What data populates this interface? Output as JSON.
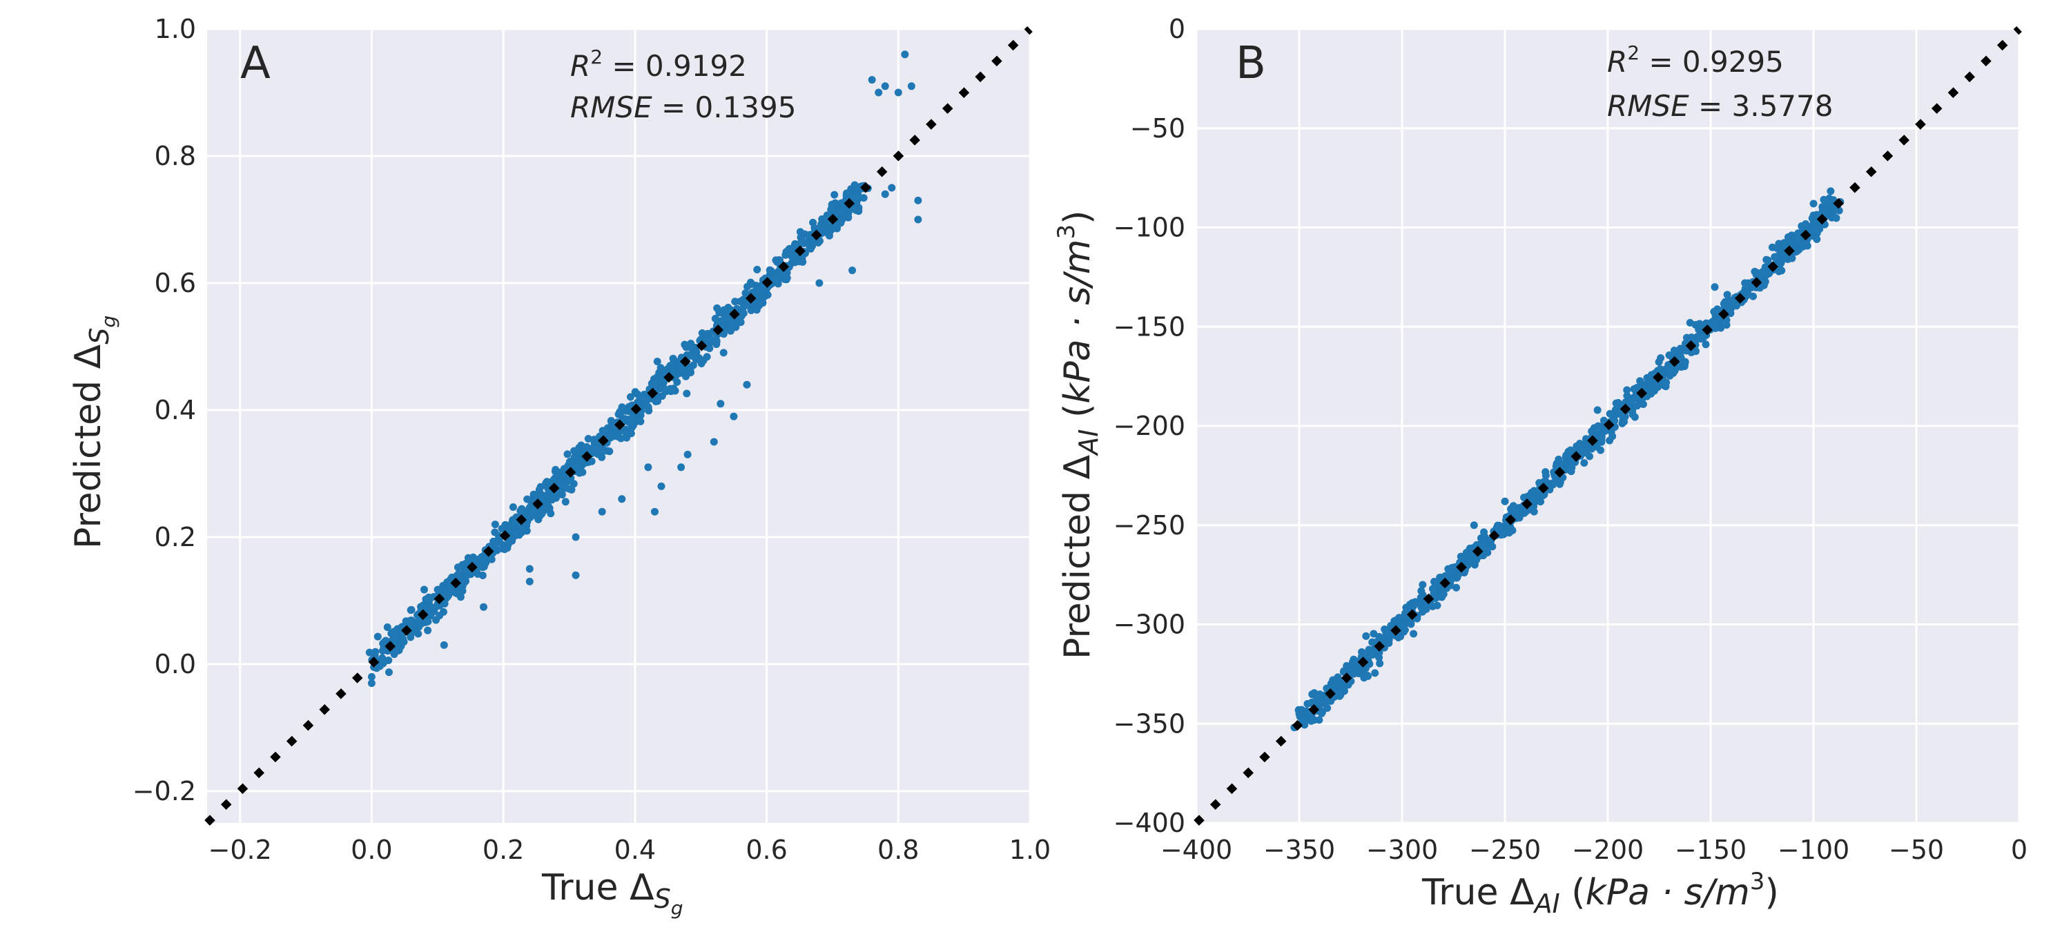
{
  "chart_data": [
    {
      "type": "scatter",
      "panel_label": "A",
      "xlabel": "True Δ",
      "xlabel_sub": "S",
      "xlabel_subsub": "g",
      "ylabel": "Predicted Δ",
      "ylabel_sub": "S",
      "ylabel_subsub": "g",
      "xlim": [
        -0.25,
        1.0
      ],
      "ylim": [
        -0.25,
        1.0
      ],
      "xticks": [
        -0.2,
        0.0,
        0.2,
        0.4,
        0.6,
        0.8,
        1.0
      ],
      "yticks": [
        -0.2,
        0.0,
        0.2,
        0.4,
        0.6,
        0.8,
        1.0
      ],
      "xtick_labels": [
        "−0.2",
        "0.0",
        "0.2",
        "0.4",
        "0.6",
        "0.8",
        "1.0"
      ],
      "ytick_labels": [
        "−0.2",
        "0.0",
        "0.2",
        "0.4",
        "0.6",
        "0.8",
        "1.0"
      ],
      "grid": true,
      "identity_line": true,
      "point_color": "#1f77b4",
      "annotation": {
        "r2_sym": "R",
        "r2_sup": "2",
        "r2_text": " = 0.9192",
        "rmse_sym": "RMSE",
        "rmse_text": " = 0.1395"
      },
      "scatter_trend": {
        "x_start": 0.0,
        "x_end": 0.75,
        "approx": "y ≈ x"
      },
      "outliers": [
        {
          "x": 0.76,
          "y": 0.92
        },
        {
          "x": 0.77,
          "y": 0.9
        },
        {
          "x": 0.78,
          "y": 0.91
        },
        {
          "x": 0.8,
          "y": 0.9
        },
        {
          "x": 0.81,
          "y": 0.96
        },
        {
          "x": 0.82,
          "y": 0.91
        },
        {
          "x": 0.83,
          "y": 0.73
        },
        {
          "x": 0.83,
          "y": 0.7
        },
        {
          "x": 0.79,
          "y": 0.75
        },
        {
          "x": 0.78,
          "y": 0.74
        },
        {
          "x": 0.73,
          "y": 0.62
        },
        {
          "x": 0.68,
          "y": 0.6
        },
        {
          "x": 0.57,
          "y": 0.44
        },
        {
          "x": 0.55,
          "y": 0.39
        },
        {
          "x": 0.53,
          "y": 0.41
        },
        {
          "x": 0.52,
          "y": 0.35
        },
        {
          "x": 0.48,
          "y": 0.33
        },
        {
          "x": 0.47,
          "y": 0.31
        },
        {
          "x": 0.44,
          "y": 0.28
        },
        {
          "x": 0.42,
          "y": 0.31
        },
        {
          "x": 0.43,
          "y": 0.24
        },
        {
          "x": 0.38,
          "y": 0.26
        },
        {
          "x": 0.35,
          "y": 0.24
        },
        {
          "x": 0.31,
          "y": 0.2
        },
        {
          "x": 0.31,
          "y": 0.14
        },
        {
          "x": 0.24,
          "y": 0.15
        },
        {
          "x": 0.24,
          "y": 0.13
        },
        {
          "x": 0.17,
          "y": 0.09
        },
        {
          "x": 0.11,
          "y": 0.03
        },
        {
          "x": 0.0,
          "y": -0.03
        },
        {
          "x": 0.0,
          "y": -0.02
        }
      ]
    },
    {
      "type": "scatter",
      "panel_label": "B",
      "xlabel": "True Δ",
      "xlabel_sub": "AI",
      "xlabel_units_pre": " (",
      "xlabel_units": "kPa · s/m",
      "xlabel_units_sup": "3",
      "xlabel_units_post": ")",
      "ylabel": "Predicted Δ",
      "ylabel_sub": "AI",
      "ylabel_units_pre": " (",
      "ylabel_units": "kPa · s/m",
      "ylabel_units_sup": "3",
      "ylabel_units_post": ")",
      "xlim": [
        -400,
        0
      ],
      "ylim": [
        -400,
        0
      ],
      "xticks": [
        -400,
        -350,
        -300,
        -250,
        -200,
        -150,
        -100,
        -50,
        0
      ],
      "yticks": [
        -400,
        -350,
        -300,
        -250,
        -200,
        -150,
        -100,
        -50,
        0
      ],
      "xtick_labels": [
        "−400",
        "−350",
        "−300",
        "−250",
        "−200",
        "−150",
        "−100",
        "−50",
        "0"
      ],
      "ytick_labels": [
        "−400",
        "−350",
        "−300",
        "−250",
        "−200",
        "−150",
        "−100",
        "−50",
        "0"
      ],
      "grid": true,
      "identity_line": true,
      "point_color": "#1f77b4",
      "annotation": {
        "r2_sym": "R",
        "r2_sup": "2",
        "r2_text": " = 0.9295",
        "rmse_sym": "RMSE",
        "rmse_text": " = 3.5778"
      },
      "scatter_trend": {
        "x_start": -350,
        "x_end": -88,
        "approx": "y ≈ x"
      },
      "outliers": [
        {
          "x": -350,
          "y": -345
        },
        {
          "x": -346,
          "y": -340
        },
        {
          "x": -290,
          "y": -280
        },
        {
          "x": -265,
          "y": -250
        },
        {
          "x": -250,
          "y": -238
        },
        {
          "x": -205,
          "y": -192
        },
        {
          "x": -160,
          "y": -148
        },
        {
          "x": -148,
          "y": -130
        },
        {
          "x": -120,
          "y": -110
        },
        {
          "x": -100,
          "y": -88
        },
        {
          "x": -95,
          "y": -86
        }
      ]
    }
  ]
}
